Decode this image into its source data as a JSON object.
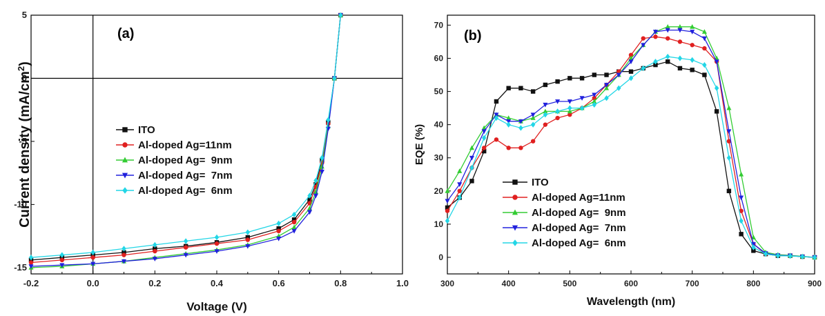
{
  "colors": {
    "ITO": "#111111",
    "Ag11": "#e02020",
    "Ag9": "#33cc33",
    "Ag7": "#2020dd",
    "Ag6": "#22d6e6"
  },
  "chart_data": [
    {
      "type": "line",
      "panel_label": "(a)",
      "xlabel": "Voltage (V)",
      "ylabel": "Current density (mA/cm",
      "ylabel_sup": "2",
      "ylabel_close": ")",
      "xlim": [
        -0.2,
        1.0
      ],
      "ylim": [
        -15.5,
        5
      ],
      "xticks": [
        -0.2,
        0.0,
        0.2,
        0.4,
        0.6,
        0.8,
        1.0
      ],
      "xtick_labels": [
        "-0.2",
        "0.0",
        "0.2",
        "0.4",
        "0.6",
        "0.8",
        "1.0"
      ],
      "yticks": [
        -15,
        -10,
        -5,
        0,
        5
      ],
      "ytick_labels": [
        "-15",
        "-10",
        "-5",
        "0",
        "5"
      ],
      "reference_lines": {
        "x": 0,
        "y": 0
      },
      "legend_position": "center-left",
      "series": [
        {
          "name": "ITO",
          "color_key": "ITO",
          "marker": "square",
          "x": [
            -0.2,
            -0.1,
            0,
            0.1,
            0.2,
            0.3,
            0.4,
            0.5,
            0.6,
            0.65,
            0.7,
            0.72,
            0.74,
            0.76,
            0.78,
            0.8
          ],
          "y": [
            -14.4,
            -14.2,
            -14.0,
            -13.8,
            -13.5,
            -13.3,
            -13.0,
            -12.6,
            -11.9,
            -11.2,
            -9.6,
            -8.4,
            -6.5,
            -3.5,
            0,
            5
          ]
        },
        {
          "name": "Al-doped Ag=11nm",
          "color_key": "Ag11",
          "marker": "circle",
          "x": [
            -0.2,
            -0.1,
            0,
            0.1,
            0.2,
            0.3,
            0.4,
            0.5,
            0.6,
            0.65,
            0.7,
            0.72,
            0.74,
            0.76,
            0.78,
            0.8
          ],
          "y": [
            -14.6,
            -14.4,
            -14.2,
            -14.0,
            -13.7,
            -13.4,
            -13.1,
            -12.8,
            -12.1,
            -11.4,
            -9.9,
            -8.6,
            -6.7,
            -3.6,
            0,
            5
          ]
        },
        {
          "name": "Al-doped Ag=  9nm",
          "color_key": "Ag9",
          "marker": "triangle-up",
          "x": [
            -0.2,
            -0.1,
            0,
            0.1,
            0.2,
            0.3,
            0.4,
            0.5,
            0.6,
            0.65,
            0.7,
            0.72,
            0.74,
            0.76,
            0.78,
            0.8
          ],
          "y": [
            -15.0,
            -14.9,
            -14.7,
            -14.5,
            -14.2,
            -13.9,
            -13.6,
            -13.2,
            -12.5,
            -11.8,
            -10.3,
            -9.0,
            -7.0,
            -3.8,
            0,
            5
          ]
        },
        {
          "name": "Al-doped Ag=  7nm",
          "color_key": "Ag7",
          "marker": "triangle-down",
          "x": [
            -0.2,
            -0.1,
            0,
            0.1,
            0.2,
            0.3,
            0.4,
            0.5,
            0.6,
            0.65,
            0.7,
            0.72,
            0.74,
            0.76,
            0.78,
            0.8
          ],
          "y": [
            -14.9,
            -14.8,
            -14.7,
            -14.5,
            -14.3,
            -14.0,
            -13.7,
            -13.3,
            -12.7,
            -12.1,
            -10.6,
            -9.3,
            -7.4,
            -4.0,
            0,
            5
          ]
        },
        {
          "name": "Al-doped Ag=  6nm",
          "color_key": "Ag6",
          "marker": "diamond",
          "x": [
            -0.2,
            -0.1,
            0,
            0.1,
            0.2,
            0.3,
            0.4,
            0.5,
            0.6,
            0.65,
            0.7,
            0.72,
            0.74,
            0.76,
            0.78,
            0.8
          ],
          "y": [
            -14.2,
            -14.0,
            -13.8,
            -13.5,
            -13.2,
            -12.9,
            -12.6,
            -12.2,
            -11.5,
            -10.8,
            -9.3,
            -8.1,
            -6.3,
            -3.3,
            0,
            5
          ]
        }
      ]
    },
    {
      "type": "line",
      "panel_label": "(b)",
      "xlabel": "Wavelength (nm)",
      "ylabel": "EQE (%)",
      "xlim": [
        300,
        900
      ],
      "ylim": [
        -5,
        73
      ],
      "xticks": [
        300,
        400,
        500,
        600,
        700,
        800,
        900
      ],
      "xtick_labels": [
        "300",
        "400",
        "500",
        "600",
        "700",
        "800",
        "900"
      ],
      "yticks": [
        0,
        10,
        20,
        30,
        40,
        50,
        60,
        70
      ],
      "ytick_labels": [
        "0",
        "10",
        "20",
        "30",
        "40",
        "50",
        "60",
        "70"
      ],
      "legend_position": "bottom-left",
      "series": [
        {
          "name": "ITO",
          "color_key": "ITO",
          "marker": "square",
          "x": [
            300,
            320,
            340,
            360,
            380,
            400,
            420,
            440,
            460,
            480,
            500,
            520,
            540,
            560,
            580,
            600,
            620,
            640,
            660,
            680,
            700,
            720,
            740,
            760,
            780,
            800,
            820,
            840,
            860,
            880,
            900
          ],
          "y": [
            15,
            18,
            23,
            32,
            47,
            51,
            51,
            50,
            52,
            53,
            54,
            54,
            55,
            55,
            56,
            56,
            57,
            58,
            59,
            57,
            56.5,
            55,
            44,
            20,
            7,
            2,
            1,
            0.5,
            0.5,
            0.2,
            0
          ]
        },
        {
          "name": "Al-doped Ag=11nm",
          "color_key": "Ag11",
          "marker": "circle",
          "x": [
            300,
            320,
            340,
            360,
            380,
            400,
            420,
            440,
            460,
            480,
            500,
            520,
            540,
            560,
            580,
            600,
            620,
            640,
            660,
            680,
            700,
            720,
            740,
            760,
            780,
            800,
            820,
            840,
            860,
            880,
            900
          ],
          "y": [
            14,
            20,
            27,
            33,
            35.5,
            33,
            33,
            35,
            40,
            42,
            43,
            45,
            48,
            52,
            56,
            61,
            66,
            66.5,
            66,
            65,
            64,
            63,
            59,
            35,
            14,
            4,
            1,
            0.6,
            0.5,
            0.2,
            0
          ]
        },
        {
          "name": "Al-doped Ag=  9nm",
          "color_key": "Ag9",
          "marker": "triangle-up",
          "x": [
            300,
            320,
            340,
            360,
            380,
            400,
            420,
            440,
            460,
            480,
            500,
            520,
            540,
            560,
            580,
            600,
            620,
            640,
            660,
            680,
            700,
            720,
            740,
            760,
            780,
            800,
            820,
            840,
            860,
            880,
            900
          ],
          "y": [
            20,
            26,
            33,
            39,
            43,
            42,
            41,
            42,
            44,
            44,
            44,
            45,
            47,
            51,
            55,
            60,
            64,
            68,
            69.5,
            69.5,
            69.5,
            68,
            60,
            45,
            25,
            6,
            1.5,
            0.8,
            0.6,
            0.3,
            0
          ]
        },
        {
          "name": "Al-doped Ag=  7nm",
          "color_key": "Ag7",
          "marker": "triangle-down",
          "x": [
            300,
            320,
            340,
            360,
            380,
            400,
            420,
            440,
            460,
            480,
            500,
            520,
            540,
            560,
            580,
            600,
            620,
            640,
            660,
            680,
            700,
            720,
            740,
            760,
            780,
            800,
            820,
            840,
            860,
            880,
            900
          ],
          "y": [
            17,
            22,
            30,
            38,
            43,
            41,
            41,
            43,
            46,
            47,
            47,
            48,
            49,
            52,
            55,
            59,
            64,
            68,
            68.5,
            68.5,
            68,
            66,
            59,
            38,
            18,
            4,
            1.2,
            0.6,
            0.5,
            0.2,
            0
          ]
        },
        {
          "name": "Al-doped Ag=  6nm",
          "color_key": "Ag6",
          "marker": "diamond",
          "x": [
            300,
            320,
            340,
            360,
            380,
            400,
            420,
            440,
            460,
            480,
            500,
            520,
            540,
            560,
            580,
            600,
            620,
            640,
            660,
            680,
            700,
            720,
            740,
            760,
            780,
            800,
            820,
            840,
            860,
            880,
            900
          ],
          "y": [
            11,
            18,
            27,
            36,
            42,
            40,
            39,
            40,
            43,
            44,
            45,
            45,
            46,
            48,
            51,
            54,
            57,
            59,
            60.5,
            60,
            59.5,
            58,
            51,
            30,
            11,
            3,
            1,
            0.5,
            0.4,
            0.2,
            0
          ]
        }
      ]
    }
  ]
}
